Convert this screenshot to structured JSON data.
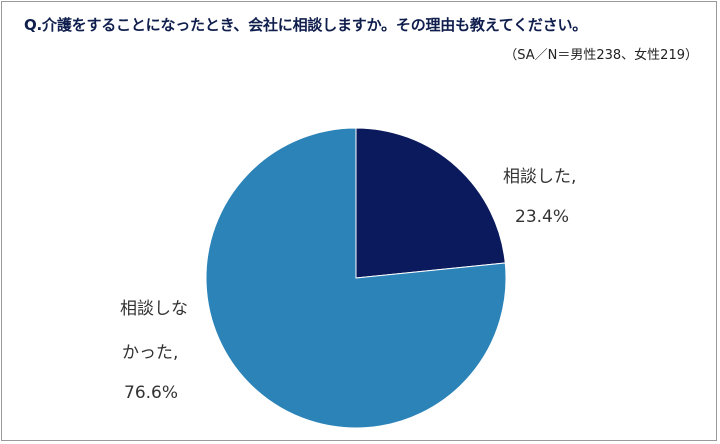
{
  "chart_data": {
    "type": "pie",
    "title": "Q.介護をすることになったとき、会社に相談しますか。その理由も教えてください。",
    "subtitle": "（SA／N＝男性238、女性219）",
    "slices": [
      {
        "label": "相談した,",
        "value": 23.4,
        "value_label": "23.4%",
        "color": "#0a1a5c"
      },
      {
        "label": "相談しな",
        "label2": "かった,",
        "value": 76.6,
        "value_label": "76.6%",
        "color": "#2b83b8"
      }
    ],
    "legend": "none"
  }
}
